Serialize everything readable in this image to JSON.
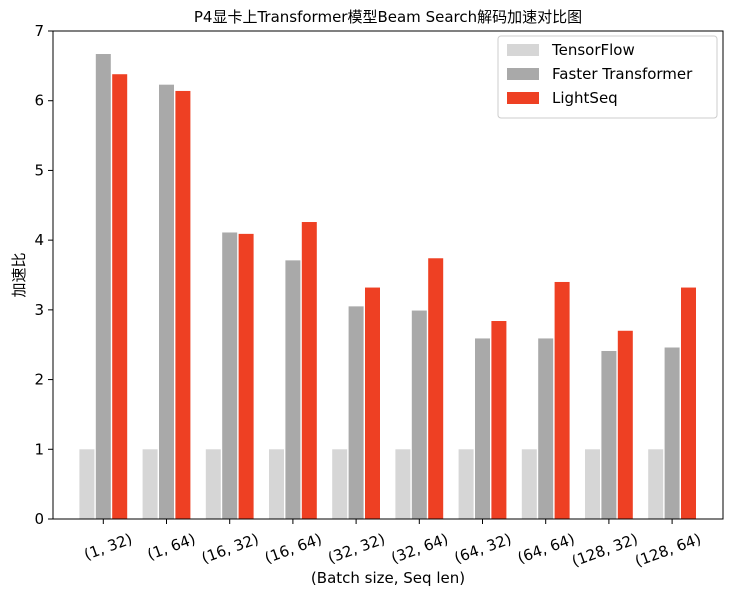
{
  "chart_data": {
    "type": "bar",
    "title": "P4显卡上Transformer模型Beam Search解码加速对比图",
    "xlabel": "(Batch size, Seq len)",
    "ylabel": "加速比",
    "ylim": [
      0,
      7
    ],
    "yticks": [
      "0",
      "1",
      "2",
      "3",
      "4",
      "5",
      "6",
      "7"
    ],
    "grid": false,
    "legend_position": "top-right",
    "categories": [
      "(1, 32)",
      "(1, 64)",
      "(16, 32)",
      "(16, 64)",
      "(32, 32)",
      "(32, 64)",
      "(64, 32)",
      "(64, 64)",
      "(128, 32)",
      "(128, 64)"
    ],
    "series": [
      {
        "name": "TensorFlow",
        "color": "#d6d6d6",
        "values": [
          1,
          1,
          1,
          1,
          1,
          1,
          1,
          1,
          1,
          1
        ]
      },
      {
        "name": "Faster Transformer",
        "color": "#a9a9a9",
        "values": [
          6.67,
          6.23,
          4.11,
          3.71,
          3.05,
          2.99,
          2.59,
          2.59,
          2.41,
          2.46
        ]
      },
      {
        "name": "LightSeq",
        "color": "#ee4023",
        "values": [
          6.38,
          6.14,
          4.09,
          4.26,
          3.32,
          3.74,
          2.84,
          3.4,
          2.7,
          3.32
        ]
      }
    ]
  }
}
